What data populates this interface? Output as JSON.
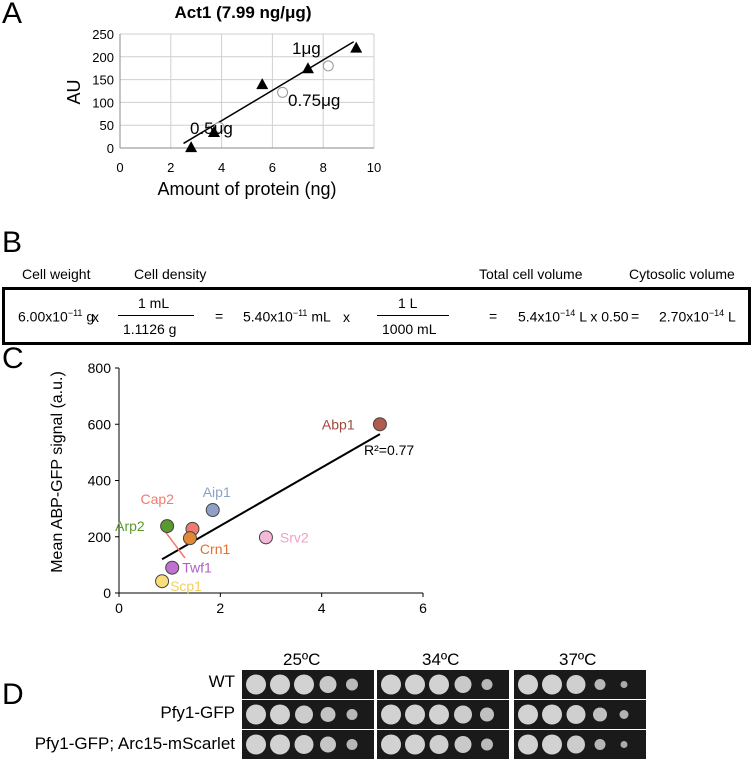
{
  "panels": {
    "A": "A",
    "B": "B",
    "C": "C",
    "D": "D"
  },
  "chart_data": [
    {
      "type": "scatter",
      "panel": "A",
      "title": "Act1 (7.99 ng/μg)",
      "xlabel": "Amount of protein (ng)",
      "ylabel": "AU",
      "xlim": [
        0,
        10
      ],
      "ylim": [
        0,
        250
      ],
      "xticks": [
        0,
        2,
        4,
        6,
        8,
        10
      ],
      "yticks": [
        0,
        50,
        100,
        150,
        200,
        250
      ],
      "grid": true,
      "series": [
        {
          "marker": "filled-triangle",
          "points": [
            [
              2.8,
              2
            ],
            [
              3.7,
              35
            ],
            [
              5.6,
              140
            ],
            [
              7.4,
              175
            ],
            [
              9.3,
              220
            ]
          ]
        },
        {
          "marker": "open-circle",
          "points": [
            [
              3.9,
              45
            ],
            [
              6.4,
              122
            ],
            [
              8.2,
              180
            ]
          ]
        }
      ],
      "fit_line": [
        [
          2.5,
          10
        ],
        [
          9.2,
          233
        ]
      ],
      "annotations": [
        "0.5μg",
        "0.75μg",
        "1μg"
      ]
    },
    {
      "type": "scatter",
      "panel": "C",
      "xlabel": "",
      "ylabel": "Mean ABP-GFP signal (a.u.)",
      "xlim": [
        0,
        6
      ],
      "ylim": [
        0,
        800
      ],
      "xticks": [
        0,
        2,
        4,
        6
      ],
      "yticks": [
        0,
        200,
        400,
        600,
        800
      ],
      "fit_line": [
        [
          0.85,
          120
        ],
        [
          5.15,
          565
        ]
      ],
      "r2_label": "R²=0.77",
      "points": [
        {
          "label": "Abp1",
          "x": 5.15,
          "y": 600,
          "color": "#b05a50",
          "text_color": "#a0483e"
        },
        {
          "label": "Aip1",
          "x": 1.85,
          "y": 295,
          "color": "#8fa0c8",
          "text_color": "#8fa0c8"
        },
        {
          "label": "Cap2",
          "x": 1.45,
          "y": 228,
          "color": "#f07a70",
          "text_color": "#f07a70"
        },
        {
          "label": "Arp2",
          "x": 0.95,
          "y": 238,
          "color": "#5a9a2c",
          "text_color": "#5a9a2c"
        },
        {
          "label": "Crn1",
          "x": 1.4,
          "y": 195,
          "color": "#e08838",
          "text_color": "#e07030"
        },
        {
          "label": "Srv2",
          "x": 2.9,
          "y": 198,
          "color": "#f6b8d8",
          "text_color": "#f0a0c8"
        },
        {
          "label": "Twf1",
          "x": 1.05,
          "y": 90,
          "color": "#c070d0",
          "text_color": "#b060c8"
        },
        {
          "label": "Scp1",
          "x": 0.85,
          "y": 42,
          "color": "#f8de78",
          "text_color": "#f0d060"
        }
      ]
    }
  ],
  "formula": {
    "headers": {
      "cell_weight": "Cell weight",
      "cell_density": "Cell density",
      "total_cell_volume": "Total cell volume",
      "cytosolic_volume": "Cytosolic volume"
    },
    "weight_base": "6.00x10",
    "weight_exp": "−11",
    "weight_unit": " g",
    "times1": "x",
    "density_num": "1 mL",
    "density_den": "1.1126 g",
    "eq1": "=",
    "vol_base": "5.40x10",
    "vol_exp": "−11",
    "vol_unit": " mL",
    "times2": "x",
    "conv_num": "1 L",
    "conv_den": "1000 mL",
    "eq2": "=",
    "total_base": "5.4x10",
    "total_exp": "−14",
    "total_unit": " L x 0.50",
    "eq3": "=",
    "cyto_base": "2.70x10",
    "cyto_exp": "−14",
    "cyto_unit": " L"
  },
  "spot_assay": {
    "temperatures": [
      "25ºC",
      "34ºC",
      "37ºC"
    ],
    "strains": [
      "WT",
      "Pfy1-GFP",
      "Pfy1-GFP; Arc15-mScarlet"
    ]
  }
}
